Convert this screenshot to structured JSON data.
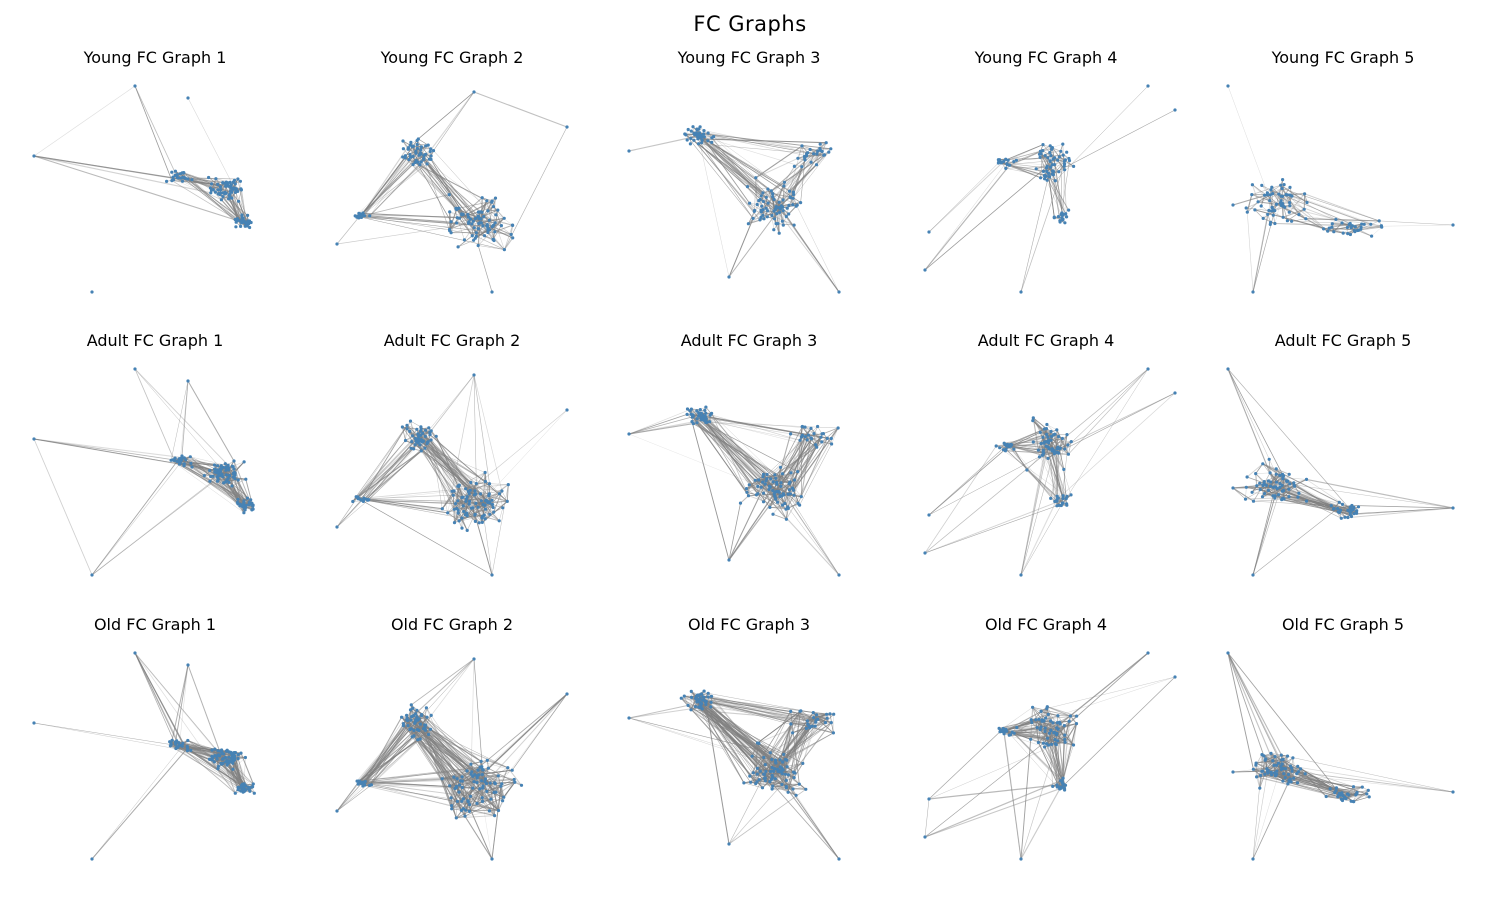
{
  "title": "FC Graphs",
  "style": {
    "node_color": "#4682b4",
    "edge_color": "#808080",
    "background": "#ffffff"
  },
  "panels": [
    {
      "title": "Young FC Graph 1",
      "group": "Young",
      "index": 1
    },
    {
      "title": "Young FC Graph 2",
      "group": "Young",
      "index": 2
    },
    {
      "title": "Young FC Graph 3",
      "group": "Young",
      "index": 3
    },
    {
      "title": "Young FC Graph 4",
      "group": "Young",
      "index": 4
    },
    {
      "title": "Young FC Graph 5",
      "group": "Young",
      "index": 5
    },
    {
      "title": "Adult FC Graph 1",
      "group": "Adult",
      "index": 1
    },
    {
      "title": "Adult FC Graph 2",
      "group": "Adult",
      "index": 2
    },
    {
      "title": "Adult FC Graph 3",
      "group": "Adult",
      "index": 3
    },
    {
      "title": "Adult FC Graph 4",
      "group": "Adult",
      "index": 4
    },
    {
      "title": "Adult FC Graph 5",
      "group": "Adult",
      "index": 5
    },
    {
      "title": "Old FC Graph 1",
      "group": "Old",
      "index": 1
    },
    {
      "title": "Old FC Graph 2",
      "group": "Old",
      "index": 2
    },
    {
      "title": "Old FC Graph 3",
      "group": "Old",
      "index": 3
    },
    {
      "title": "Old FC Graph 4",
      "group": "Old",
      "index": 4
    },
    {
      "title": "Old FC Graph 5",
      "group": "Old",
      "index": 5
    }
  ]
}
